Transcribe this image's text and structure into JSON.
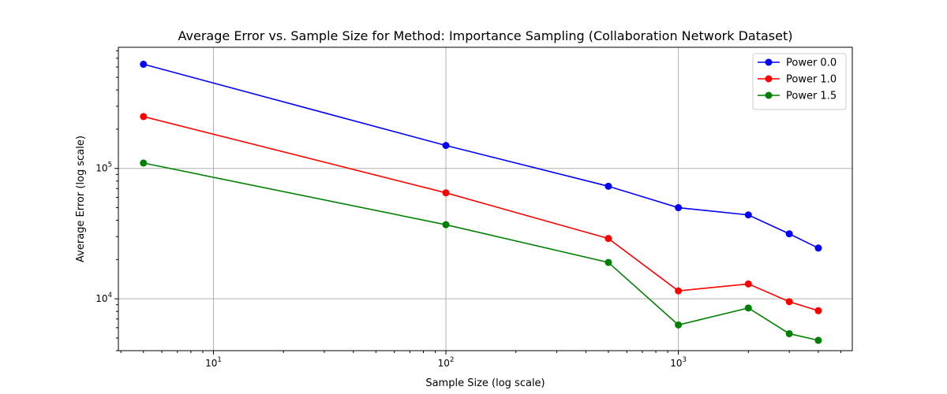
{
  "chart_data": {
    "type": "line",
    "title": "Average Error vs. Sample Size for Method: Importance Sampling (Collaboration Network Dataset)",
    "xlabel": "Sample Size (log scale)",
    "ylabel": "Average Error (log scale)",
    "xscale": "log",
    "yscale": "log",
    "xlim": [
      3.9,
      5600
    ],
    "ylim": [
      4000,
      850000
    ],
    "grid": true,
    "legend_position": "top-right",
    "x": [
      5,
      100,
      500,
      1000,
      2000,
      3000,
      4000
    ],
    "x_ticks": [
      {
        "value": 10,
        "base": "10",
        "exp": "1"
      },
      {
        "value": 100,
        "base": "10",
        "exp": "2"
      },
      {
        "value": 1000,
        "base": "10",
        "exp": "3"
      }
    ],
    "y_ticks": [
      {
        "value": 10000,
        "base": "10",
        "exp": "4"
      },
      {
        "value": 100000,
        "base": "10",
        "exp": "5"
      }
    ],
    "series": [
      {
        "name": "Power 0.0",
        "color": "#0000ff",
        "values": [
          630000,
          150000,
          73000,
          50000,
          44000,
          31500,
          24500
        ]
      },
      {
        "name": "Power 1.0",
        "color": "#ff0000",
        "values": [
          250000,
          65000,
          29000,
          11500,
          13000,
          9500,
          8100
        ]
      },
      {
        "name": "Power 1.5",
        "color": "#008000",
        "values": [
          110000,
          37000,
          19000,
          6300,
          8500,
          5400,
          4800
        ]
      }
    ]
  }
}
